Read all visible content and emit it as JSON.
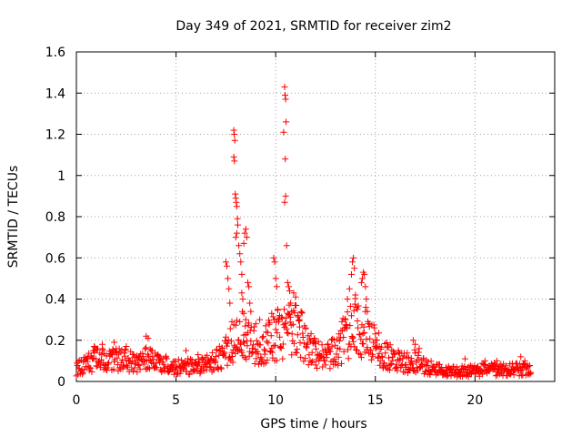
{
  "chart_data": {
    "type": "scatter",
    "title": "Day 349 of 2021, SRMTID for receiver zim2",
    "xlabel": "GPS time / hours",
    "ylabel": "SRMTID / TECUs",
    "xlim": [
      0,
      24
    ],
    "ylim": [
      0,
      1.6
    ],
    "xticks": [
      0,
      5,
      10,
      15,
      20
    ],
    "xtick_labels": [
      "0",
      "5",
      "10",
      "15",
      "20"
    ],
    "yticks": [
      0,
      0.2,
      0.4,
      0.6,
      0.8,
      1.0,
      1.2,
      1.4,
      1.6
    ],
    "ytick_labels": [
      "0",
      "0.2",
      "0.4",
      "0.6",
      "0.8",
      "1",
      "1.2",
      "1.4",
      "1.6"
    ],
    "grid": true,
    "marker": "plus",
    "series": [
      {
        "name": "SRMTID",
        "color": "#ff0000",
        "baseline": [
          [
            0.0,
            0.06
          ],
          [
            0.5,
            0.09
          ],
          [
            1.0,
            0.11
          ],
          [
            1.5,
            0.1
          ],
          [
            2.0,
            0.11
          ],
          [
            2.5,
            0.1
          ],
          [
            3.0,
            0.09
          ],
          [
            3.5,
            0.11
          ],
          [
            4.0,
            0.09
          ],
          [
            4.5,
            0.08
          ],
          [
            5.0,
            0.07
          ],
          [
            5.5,
            0.07
          ],
          [
            6.0,
            0.08
          ],
          [
            6.5,
            0.08
          ],
          [
            7.0,
            0.1
          ],
          [
            7.5,
            0.14
          ],
          [
            8.0,
            0.2
          ],
          [
            8.5,
            0.24
          ],
          [
            9.0,
            0.16
          ],
          [
            9.5,
            0.18
          ],
          [
            10.0,
            0.22
          ],
          [
            10.5,
            0.24
          ],
          [
            11.0,
            0.26
          ],
          [
            11.5,
            0.2
          ],
          [
            12.0,
            0.13
          ],
          [
            12.5,
            0.12
          ],
          [
            13.0,
            0.14
          ],
          [
            13.5,
            0.22
          ],
          [
            14.0,
            0.26
          ],
          [
            14.5,
            0.24
          ],
          [
            15.0,
            0.17
          ],
          [
            15.5,
            0.13
          ],
          [
            16.0,
            0.1
          ],
          [
            16.5,
            0.09
          ],
          [
            17.0,
            0.1
          ],
          [
            17.5,
            0.08
          ],
          [
            18.0,
            0.06
          ],
          [
            18.5,
            0.05
          ],
          [
            19.0,
            0.05
          ],
          [
            19.5,
            0.05
          ],
          [
            20.0,
            0.05
          ],
          [
            20.5,
            0.06
          ],
          [
            21.0,
            0.06
          ],
          [
            21.5,
            0.06
          ],
          [
            22.0,
            0.06
          ],
          [
            22.5,
            0.06
          ],
          [
            22.8,
            0.05
          ]
        ],
        "start_hour": 0.0,
        "end_hour": 22.8,
        "sample_step_hours": 0.025,
        "outliers": [
          [
            0.9,
            0.17
          ],
          [
            1.3,
            0.18
          ],
          [
            1.9,
            0.19
          ],
          [
            2.5,
            0.17
          ],
          [
            3.5,
            0.22
          ],
          [
            3.6,
            0.21
          ],
          [
            5.5,
            0.15
          ],
          [
            6.1,
            0.13
          ],
          [
            7.5,
            0.58
          ],
          [
            7.55,
            0.56
          ],
          [
            7.6,
            0.5
          ],
          [
            7.65,
            0.45
          ],
          [
            7.7,
            0.38
          ],
          [
            7.8,
            0.29
          ],
          [
            7.9,
            1.22
          ],
          [
            7.92,
            1.2
          ],
          [
            7.95,
            1.17
          ],
          [
            7.9,
            1.09
          ],
          [
            7.93,
            1.07
          ],
          [
            7.97,
            0.91
          ],
          [
            8.0,
            0.89
          ],
          [
            8.02,
            0.87
          ],
          [
            8.05,
            0.85
          ],
          [
            8.08,
            0.79
          ],
          [
            8.1,
            0.76
          ],
          [
            8.05,
            0.72
          ],
          [
            8.0,
            0.7
          ],
          [
            8.15,
            0.66
          ],
          [
            8.2,
            0.62
          ],
          [
            8.25,
            0.58
          ],
          [
            8.3,
            0.52
          ],
          [
            8.3,
            0.43
          ],
          [
            8.35,
            0.4
          ],
          [
            8.4,
            0.67
          ],
          [
            8.45,
            0.72
          ],
          [
            8.5,
            0.74
          ],
          [
            8.55,
            0.7
          ],
          [
            8.6,
            0.48
          ],
          [
            8.65,
            0.46
          ],
          [
            8.7,
            0.38
          ],
          [
            8.75,
            0.34
          ],
          [
            8.4,
            0.33
          ],
          [
            8.5,
            0.3
          ],
          [
            9.0,
            0.28
          ],
          [
            9.2,
            0.3
          ],
          [
            9.5,
            0.27
          ],
          [
            9.8,
            0.33
          ],
          [
            9.9,
            0.6
          ],
          [
            9.95,
            0.58
          ],
          [
            10.0,
            0.5
          ],
          [
            10.05,
            0.46
          ],
          [
            10.1,
            0.35
          ],
          [
            10.2,
            0.32
          ],
          [
            10.45,
            1.43
          ],
          [
            10.47,
            1.39
          ],
          [
            10.5,
            1.37
          ],
          [
            10.52,
            1.26
          ],
          [
            10.4,
            1.21
          ],
          [
            10.48,
            1.08
          ],
          [
            10.5,
            0.9
          ],
          [
            10.45,
            0.87
          ],
          [
            10.55,
            0.66
          ],
          [
            10.6,
            0.48
          ],
          [
            10.65,
            0.46
          ],
          [
            10.7,
            0.44
          ],
          [
            10.75,
            0.38
          ],
          [
            10.8,
            0.34
          ],
          [
            10.9,
            0.43
          ],
          [
            11.0,
            0.41
          ],
          [
            11.1,
            0.32
          ],
          [
            11.2,
            0.3
          ],
          [
            11.5,
            0.26
          ],
          [
            12.0,
            0.19
          ],
          [
            13.5,
            0.3
          ],
          [
            13.6,
            0.4
          ],
          [
            13.7,
            0.45
          ],
          [
            13.8,
            0.52
          ],
          [
            13.85,
            0.58
          ],
          [
            13.9,
            0.6
          ],
          [
            13.95,
            0.55
          ],
          [
            14.0,
            0.42
          ],
          [
            14.1,
            0.35
          ],
          [
            14.3,
            0.48
          ],
          [
            14.35,
            0.5
          ],
          [
            14.4,
            0.53
          ],
          [
            14.45,
            0.52
          ],
          [
            14.5,
            0.46
          ],
          [
            14.55,
            0.4
          ],
          [
            14.6,
            0.34
          ],
          [
            14.7,
            0.28
          ],
          [
            15.0,
            0.2
          ],
          [
            15.2,
            0.17
          ],
          [
            16.9,
            0.2
          ],
          [
            17.0,
            0.18
          ],
          [
            17.2,
            0.16
          ],
          [
            19.5,
            0.11
          ],
          [
            20.5,
            0.1
          ],
          [
            21.1,
            0.1
          ],
          [
            22.3,
            0.12
          ],
          [
            22.5,
            0.1
          ]
        ]
      }
    ]
  }
}
